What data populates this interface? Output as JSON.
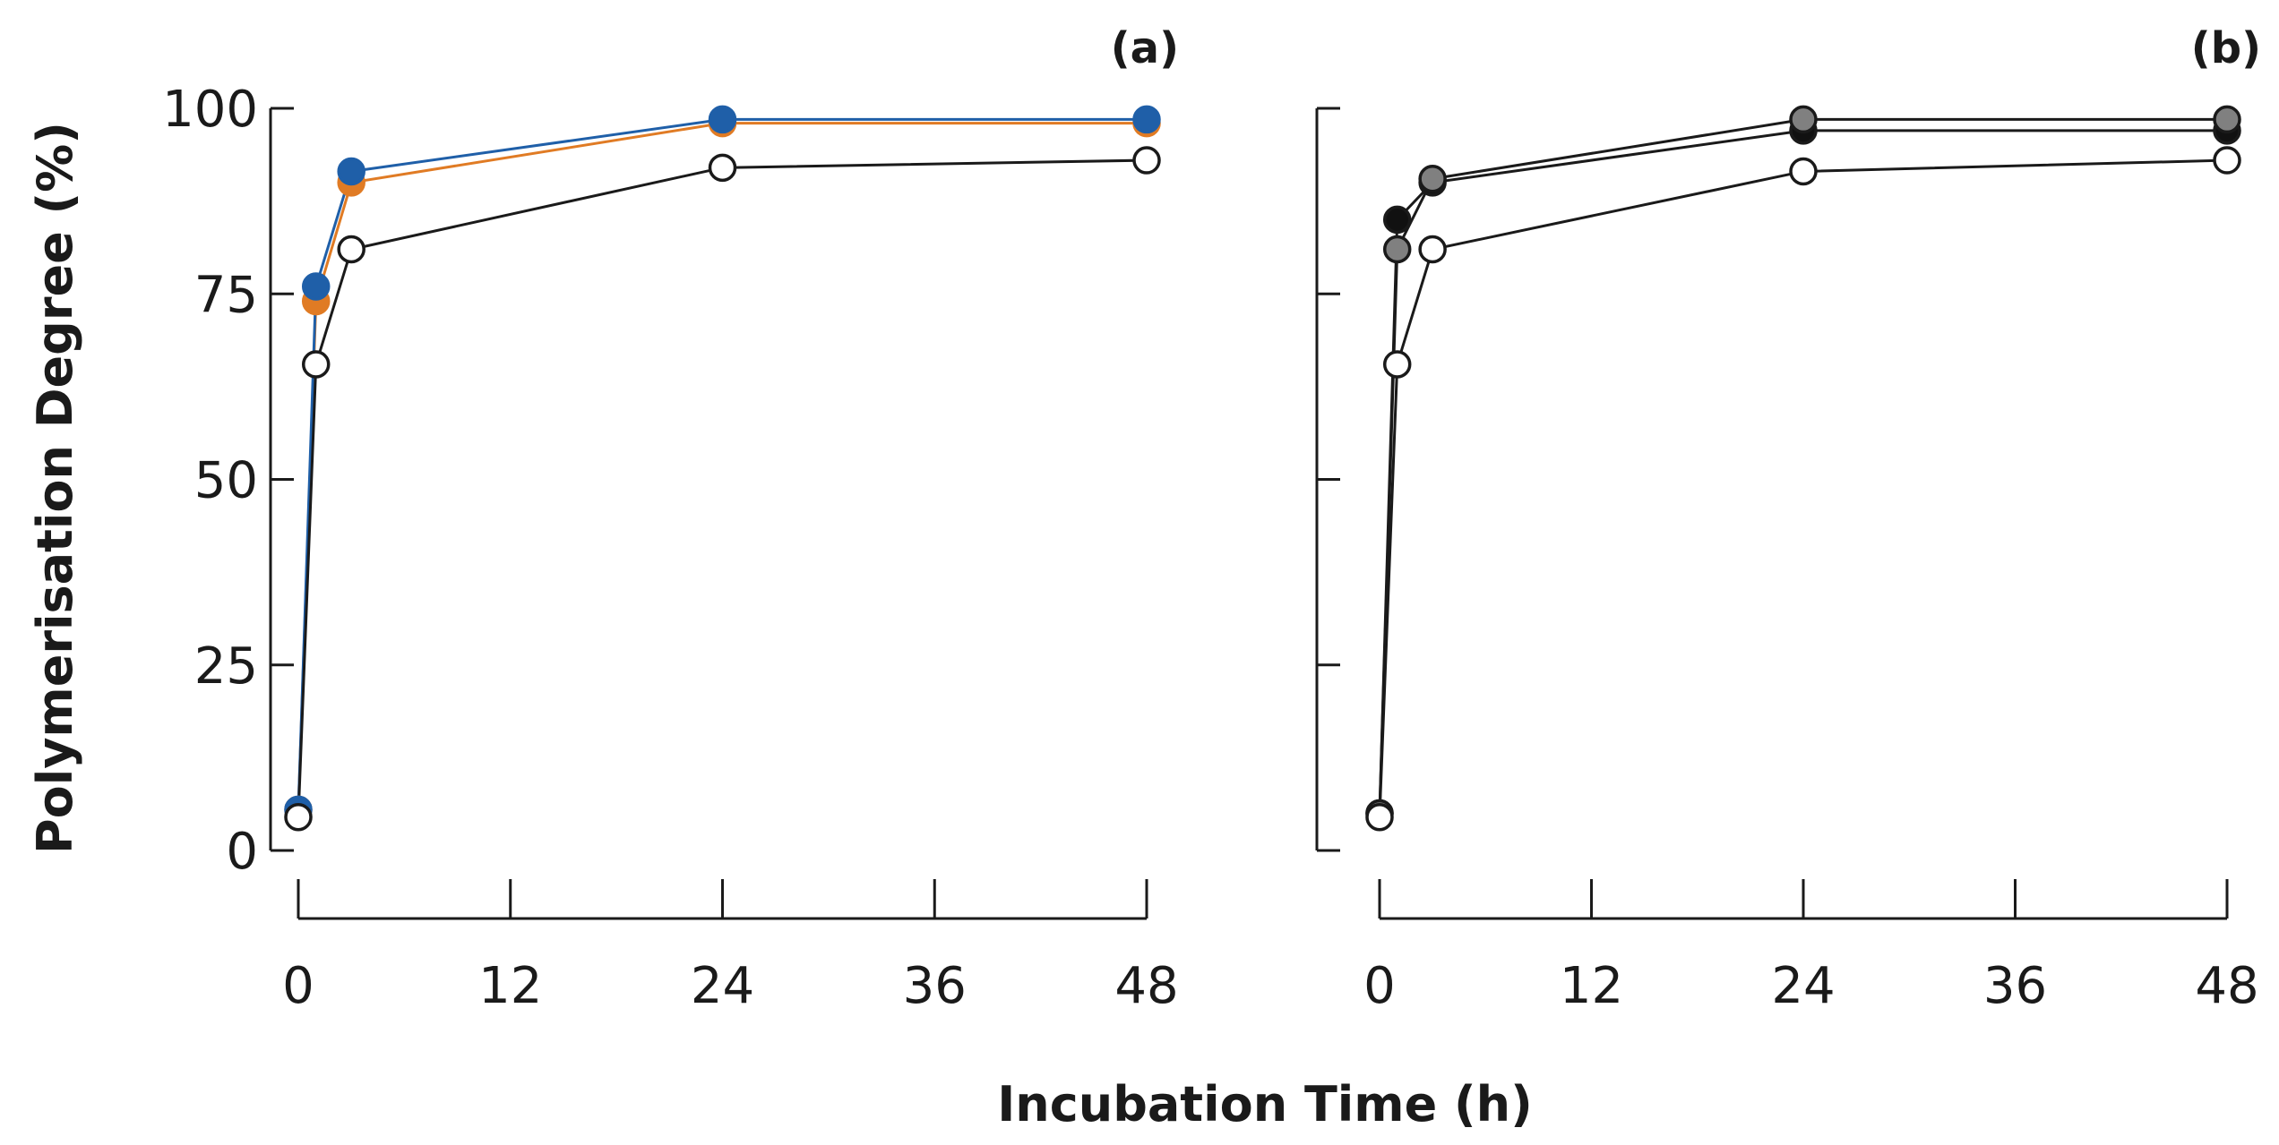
{
  "figure": {
    "xlabel": "Incubation Time (h)",
    "ylabel": "Polymerisation Degree (%)"
  },
  "chart_data": [
    {
      "type": "line",
      "panel_label": "(a)",
      "title": "",
      "xlabel": "Incubation Time (h)",
      "ylabel": "Polymerisation Degree (%)",
      "xlim": [
        0,
        48
      ],
      "ylim": [
        0,
        100
      ],
      "xticks": [
        0,
        12,
        24,
        36,
        48
      ],
      "yticks": [
        0,
        25,
        50,
        75,
        100
      ],
      "xtick_labels": [
        "0",
        "12",
        "24",
        "36",
        "48"
      ],
      "ytick_labels": [
        "0",
        "25",
        "50",
        "75",
        "100"
      ],
      "show_y_tick_labels": true,
      "grid": false,
      "x": [
        0,
        1,
        3,
        24,
        48
      ],
      "series": [
        {
          "name": "orange-filled",
          "line_color": "#e07b24",
          "fill_color": "#e07b24",
          "values": [
            5.5,
            74,
            90,
            98,
            98
          ]
        },
        {
          "name": "blue-filled",
          "line_color": "#1f5fa8",
          "fill_color": "#1f5fa8",
          "values": [
            5.5,
            76,
            91.5,
            98.5,
            98.5
          ]
        },
        {
          "name": "open-circle",
          "line_color": "#1a1a1a",
          "fill_color": "#ffffff",
          "values": [
            4.5,
            65.5,
            81,
            92,
            93
          ]
        }
      ]
    },
    {
      "type": "line",
      "panel_label": "(b)",
      "title": "",
      "xlabel": "Incubation Time (h)",
      "ylabel": "",
      "xlim": [
        0,
        48
      ],
      "ylim": [
        0,
        100
      ],
      "xticks": [
        0,
        12,
        24,
        36,
        48
      ],
      "yticks": [
        0,
        25,
        50,
        75,
        100
      ],
      "xtick_labels": [
        "0",
        "12",
        "24",
        "36",
        "48"
      ],
      "ytick_labels": [
        "",
        "",
        "",
        "",
        ""
      ],
      "show_y_tick_labels": false,
      "grid": false,
      "x": [
        0,
        1,
        3,
        24,
        48
      ],
      "series": [
        {
          "name": "black-filled",
          "line_color": "#1a1a1a",
          "fill_color": "#111111",
          "values": [
            5,
            85,
            90,
            97,
            97
          ]
        },
        {
          "name": "grey-filled",
          "line_color": "#1a1a1a",
          "fill_color": "#808080",
          "values": [
            5,
            81,
            90.5,
            98.5,
            98.5
          ]
        },
        {
          "name": "open-circle",
          "line_color": "#1a1a1a",
          "fill_color": "#ffffff",
          "values": [
            4.5,
            65.5,
            81,
            91.5,
            93
          ]
        }
      ]
    }
  ]
}
